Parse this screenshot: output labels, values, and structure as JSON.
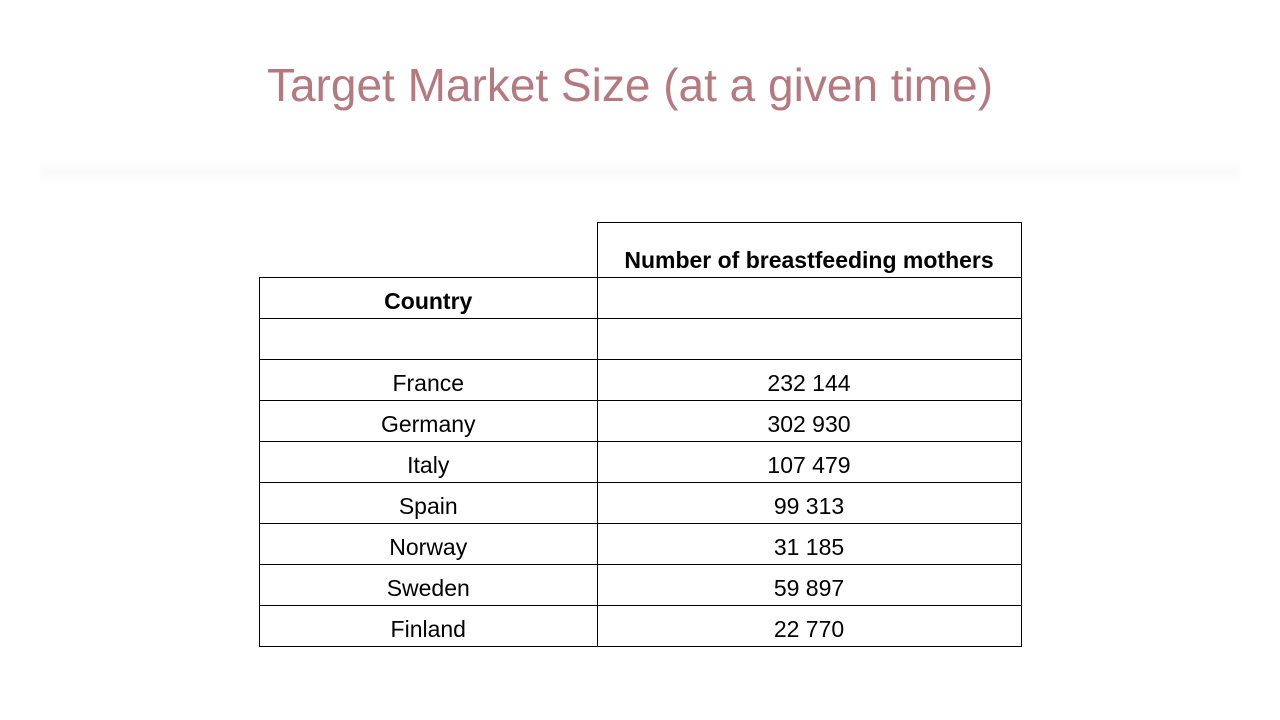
{
  "slide": {
    "title": "Target Market Size (at a given time)",
    "title_color": "#b47a7f"
  },
  "table": {
    "value_header": "Number of breastfeeding mothers",
    "country_header": "Country",
    "rows": [
      {
        "country": "France",
        "mothers": "232 144"
      },
      {
        "country": "Germany",
        "mothers": "302 930"
      },
      {
        "country": "Italy",
        "mothers": "107 479"
      },
      {
        "country": "Spain",
        "mothers": "99 313"
      },
      {
        "country": "Norway",
        "mothers": "31 185"
      },
      {
        "country": "Sweden",
        "mothers": "59 897"
      },
      {
        "country": "Finland",
        "mothers": "22 770"
      }
    ]
  }
}
